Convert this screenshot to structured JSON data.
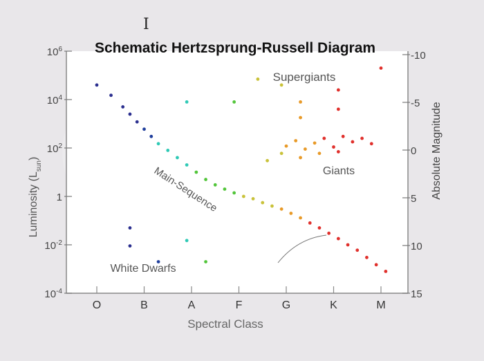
{
  "chart_data": {
    "type": "scatter",
    "title": "Schematic Hertzsprung-Russell Diagram",
    "xlabel": "Spectral Class",
    "ylabel": "Luminosity (L",
    "ylabel_sub": "sun",
    "ylabel_close": ")",
    "y2label": "Absolute Magnitude",
    "y_scale": "log",
    "ylim": [
      0.0001,
      1000000
    ],
    "categories": [
      "O",
      "B",
      "A",
      "F",
      "G",
      "K",
      "M"
    ],
    "y_ticks": [
      {
        "base": "10",
        "exp": "6",
        "value": 1000000
      },
      {
        "base": "10",
        "exp": "4",
        "value": 10000
      },
      {
        "base": "10",
        "exp": "2",
        "value": 100
      },
      {
        "base": "1",
        "exp": "",
        "value": 1
      },
      {
        "base": "10",
        "exp": "-2",
        "value": 0.01
      },
      {
        "base": "10",
        "exp": "-4",
        "value": 0.0001
      }
    ],
    "y2_ticks": [
      "-10",
      "-5",
      "0",
      "5",
      "10",
      "15"
    ],
    "annotations": {
      "supergiants": "Supergiants",
      "giants": "Giants",
      "main_sequence": "Main-Sequence",
      "white_dwarfs": "White Dwarfs"
    },
    "colors": {
      "O": "#2b2f8f",
      "B": "#1f3e9c",
      "A": "#2ec9b5",
      "F": "#52c53a",
      "G": "#c9c23a",
      "K": "#e89a28",
      "M": "#e0302c"
    },
    "series": [
      {
        "name": "Main-Sequence",
        "points": [
          {
            "x": 0.0,
            "y": 40000,
            "c": "O"
          },
          {
            "x": 0.3,
            "y": 15000,
            "c": "O"
          },
          {
            "x": 0.55,
            "y": 5000,
            "c": "O"
          },
          {
            "x": 0.7,
            "y": 2500,
            "c": "O"
          },
          {
            "x": 0.85,
            "y": 1200,
            "c": "O"
          },
          {
            "x": 1.0,
            "y": 600,
            "c": "B"
          },
          {
            "x": 1.15,
            "y": 300,
            "c": "B"
          },
          {
            "x": 1.3,
            "y": 150,
            "c": "A"
          },
          {
            "x": 1.5,
            "y": 80,
            "c": "A"
          },
          {
            "x": 1.7,
            "y": 40,
            "c": "A"
          },
          {
            "x": 1.9,
            "y": 20,
            "c": "A"
          },
          {
            "x": 2.1,
            "y": 10,
            "c": "F"
          },
          {
            "x": 2.3,
            "y": 5,
            "c": "F"
          },
          {
            "x": 2.5,
            "y": 3,
            "c": "F"
          },
          {
            "x": 2.7,
            "y": 2,
            "c": "F"
          },
          {
            "x": 2.9,
            "y": 1.4,
            "c": "F"
          },
          {
            "x": 3.1,
            "y": 1.0,
            "c": "G"
          },
          {
            "x": 3.3,
            "y": 0.8,
            "c": "G"
          },
          {
            "x": 3.5,
            "y": 0.55,
            "c": "G"
          },
          {
            "x": 3.7,
            "y": 0.4,
            "c": "G"
          },
          {
            "x": 3.9,
            "y": 0.3,
            "c": "K"
          },
          {
            "x": 4.1,
            "y": 0.2,
            "c": "K"
          },
          {
            "x": 4.3,
            "y": 0.13,
            "c": "K"
          },
          {
            "x": 4.5,
            "y": 0.08,
            "c": "M"
          },
          {
            "x": 4.7,
            "y": 0.05,
            "c": "M"
          },
          {
            "x": 4.9,
            "y": 0.03,
            "c": "M"
          },
          {
            "x": 5.1,
            "y": 0.018,
            "c": "M"
          },
          {
            "x": 5.3,
            "y": 0.01,
            "c": "M"
          },
          {
            "x": 5.5,
            "y": 0.006,
            "c": "M"
          },
          {
            "x": 5.7,
            "y": 0.003,
            "c": "M"
          },
          {
            "x": 5.9,
            "y": 0.0015,
            "c": "M"
          },
          {
            "x": 6.1,
            "y": 0.0008,
            "c": "M"
          }
        ]
      },
      {
        "name": "Giants",
        "points": [
          {
            "x": 4.0,
            "y": 120,
            "c": "K"
          },
          {
            "x": 4.2,
            "y": 200,
            "c": "K"
          },
          {
            "x": 4.4,
            "y": 90,
            "c": "K"
          },
          {
            "x": 4.6,
            "y": 160,
            "c": "K"
          },
          {
            "x": 4.8,
            "y": 250,
            "c": "M"
          },
          {
            "x": 5.0,
            "y": 110,
            "c": "M"
          },
          {
            "x": 5.2,
            "y": 300,
            "c": "M"
          },
          {
            "x": 5.4,
            "y": 180,
            "c": "M"
          },
          {
            "x": 5.6,
            "y": 250,
            "c": "M"
          },
          {
            "x": 5.8,
            "y": 150,
            "c": "M"
          },
          {
            "x": 3.9,
            "y": 60,
            "c": "G"
          },
          {
            "x": 4.3,
            "y": 40,
            "c": "K"
          },
          {
            "x": 4.7,
            "y": 60,
            "c": "K"
          },
          {
            "x": 5.1,
            "y": 70,
            "c": "M"
          },
          {
            "x": 3.6,
            "y": 30,
            "c": "G"
          }
        ]
      },
      {
        "name": "Supergiants",
        "points": [
          {
            "x": 1.9,
            "y": 8000,
            "c": "A"
          },
          {
            "x": 2.9,
            "y": 8000,
            "c": "F"
          },
          {
            "x": 3.4,
            "y": 70000,
            "c": "G"
          },
          {
            "x": 3.9,
            "y": 40000,
            "c": "G"
          },
          {
            "x": 4.3,
            "y": 8000,
            "c": "K"
          },
          {
            "x": 4.3,
            "y": 1800,
            "c": "K"
          },
          {
            "x": 5.1,
            "y": 25000,
            "c": "M"
          },
          {
            "x": 5.1,
            "y": 4000,
            "c": "M"
          },
          {
            "x": 6.0,
            "y": 200000,
            "c": "M"
          }
        ]
      },
      {
        "name": "White Dwarfs",
        "points": [
          {
            "x": 0.7,
            "y": 0.05,
            "c": "O"
          },
          {
            "x": 0.7,
            "y": 0.009,
            "c": "O"
          },
          {
            "x": 1.3,
            "y": 0.002,
            "c": "B"
          },
          {
            "x": 1.9,
            "y": 0.015,
            "c": "A"
          },
          {
            "x": 2.3,
            "y": 0.002,
            "c": "F"
          }
        ]
      }
    ]
  }
}
